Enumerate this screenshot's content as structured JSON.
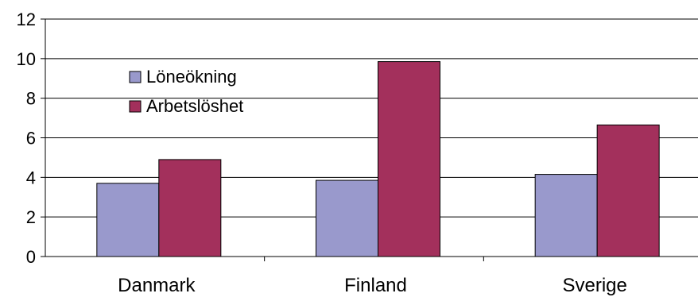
{
  "chart_data": {
    "type": "bar",
    "categories": [
      "Danmark",
      "Finland",
      "Sverige"
    ],
    "series": [
      {
        "name": "Löneökning",
        "values": [
          3.7,
          3.85,
          4.15
        ],
        "color": "#9999cc"
      },
      {
        "name": "Arbetslöshet",
        "values": [
          4.9,
          9.85,
          6.65
        ],
        "color": "#a3305c"
      }
    ],
    "ylim": [
      0,
      12
    ],
    "yticks": [
      "0",
      "2",
      "4",
      "6",
      "8",
      "10",
      "12"
    ],
    "grid": "horizontal",
    "legend_position": "top-left-inside"
  }
}
